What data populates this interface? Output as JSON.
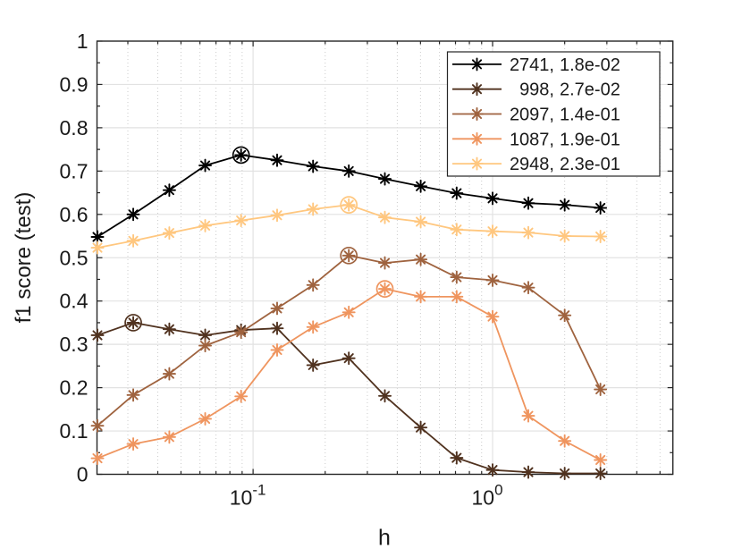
{
  "figure": {
    "background": "#ffffff",
    "axes_color": "#262626",
    "grid_major_color": "#e2e2e2",
    "grid_minor_color": "#cccccc",
    "text_color": "#1a1a1a"
  },
  "chart_data": {
    "type": "line",
    "title": "",
    "xlabel": "h",
    "ylabel": "f1 score (test)",
    "x_scale": "log",
    "xlim": [
      0.0223,
      5.66
    ],
    "ylim": [
      0,
      1
    ],
    "grid": "on",
    "legend_position": "top-right",
    "marker": "asterisk",
    "x_major_ticks": [
      0.1,
      1
    ],
    "x_major_tick_labels": [
      {
        "base": "10",
        "exp": "-1"
      },
      {
        "base": "10",
        "exp": "0"
      }
    ],
    "x_minor_ticks": [
      0.03,
      0.04,
      0.05,
      0.06,
      0.07,
      0.08,
      0.09,
      0.2,
      0.3,
      0.4,
      0.5,
      0.6,
      0.7,
      0.8,
      0.9,
      2,
      3,
      4,
      5
    ],
    "y_ticks": [
      0,
      0.1,
      0.2,
      0.3,
      0.4,
      0.5,
      0.6,
      0.7,
      0.8,
      0.9,
      1
    ],
    "y_tick_labels": [
      "0",
      "0.1",
      "0.2",
      "0.3",
      "0.4",
      "0.5",
      "0.6",
      "0.7",
      "0.8",
      "0.9",
      "1"
    ],
    "y_minor_ticks": [
      0.05,
      0.15,
      0.25,
      0.35,
      0.45,
      0.55,
      0.65,
      0.75,
      0.85,
      0.95
    ],
    "x": [
      0.0224,
      0.0316,
      0.0447,
      0.0631,
      0.0891,
      0.126,
      0.178,
      0.251,
      0.355,
      0.501,
      0.708,
      1.0,
      1.41,
      2.0,
      2.82
    ],
    "series": [
      {
        "name": "2741, 1.8e-02",
        "count": "2741",
        "rate": "1.8e-02",
        "color": "#000000",
        "peak_index": 4,
        "values": [
          0.548,
          0.6,
          0.656,
          0.713,
          0.737,
          0.725,
          0.711,
          0.7,
          0.682,
          0.665,
          0.649,
          0.637,
          0.626,
          0.622,
          0.615
        ]
      },
      {
        "name": "998, 2.7e-02",
        "count": "998",
        "rate": "2.7e-02",
        "color": "#50321F",
        "peak_index": 1,
        "values": [
          0.321,
          0.35,
          0.335,
          0.321,
          0.333,
          0.337,
          0.252,
          0.268,
          0.181,
          0.108,
          0.038,
          0.01,
          0.005,
          0.002,
          0.002
        ]
      },
      {
        "name": "2097, 1.4e-01",
        "count": "2097",
        "rate": "1.4e-01",
        "color": "#9F633F",
        "peak_index": 7,
        "values": [
          0.112,
          0.183,
          0.232,
          0.297,
          0.328,
          0.383,
          0.437,
          0.505,
          0.488,
          0.496,
          0.455,
          0.448,
          0.431,
          0.367,
          0.196
        ]
      },
      {
        "name": "1087, 1.9e-01",
        "count": "1087",
        "rate": "1.9e-01",
        "color": "#EF955F",
        "peak_index": 8,
        "values": [
          0.037,
          0.07,
          0.086,
          0.128,
          0.18,
          0.287,
          0.34,
          0.374,
          0.428,
          0.41,
          0.41,
          0.364,
          0.135,
          0.077,
          0.033
        ]
      },
      {
        "name": "2948, 2.3e-01",
        "count": "2948",
        "rate": "2.3e-01",
        "color": "#FFC77F",
        "peak_index": 7,
        "values": [
          0.523,
          0.539,
          0.557,
          0.574,
          0.586,
          0.598,
          0.612,
          0.622,
          0.593,
          0.583,
          0.565,
          0.561,
          0.558,
          0.55,
          0.549
        ]
      }
    ]
  }
}
